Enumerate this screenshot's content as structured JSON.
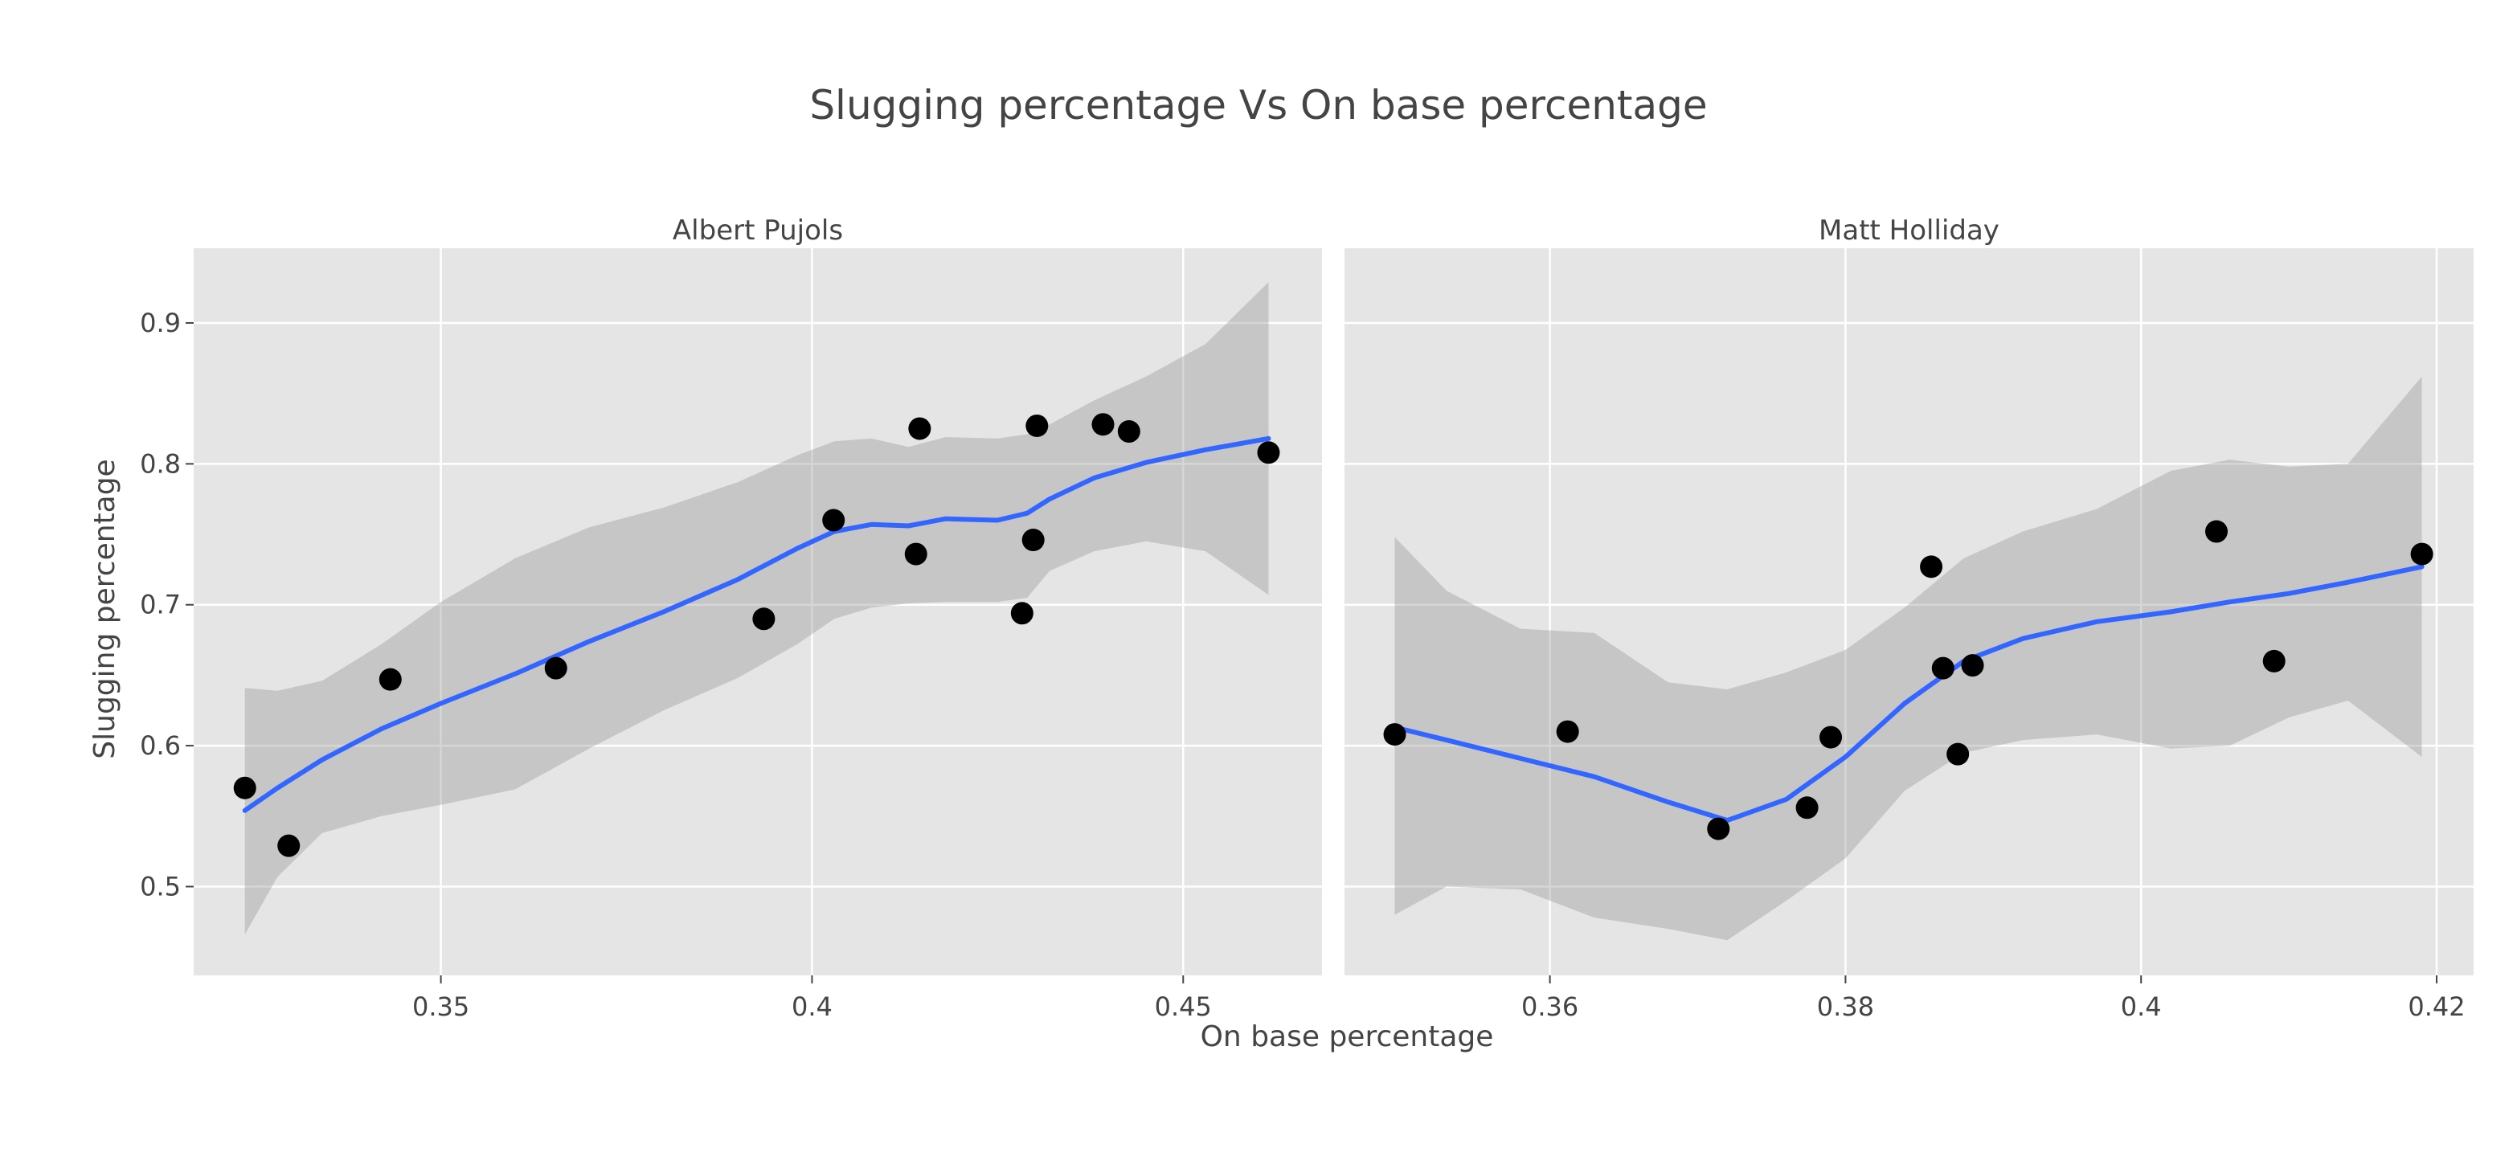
{
  "chart_data": {
    "type": "scatter",
    "title": "Slugging percentage Vs On base percentage",
    "xlabel": "On base percentage",
    "ylabel": "Slugging percentage",
    "ylim": [
      0.437,
      0.953
    ],
    "yticks": [
      0.5,
      0.6,
      0.7,
      0.8,
      0.9
    ],
    "colors": {
      "points": "#000000",
      "smooth": "#3366ff",
      "band": "#999999",
      "panel": "#e5e5e5"
    },
    "facets": [
      {
        "name": "Albert Pujols",
        "xlim": [
          0.3167,
          0.4687
        ],
        "xticks": [
          0.35,
          0.4,
          0.45
        ],
        "x_tick_labels": [
          "0.35",
          "0.4",
          "0.45"
        ],
        "points": [
          {
            "x": 0.3236,
            "y": 0.57
          },
          {
            "x": 0.3295,
            "y": 0.529
          },
          {
            "x": 0.3432,
            "y": 0.647
          },
          {
            "x": 0.3655,
            "y": 0.655
          },
          {
            "x": 0.3935,
            "y": 0.69
          },
          {
            "x": 0.4029,
            "y": 0.76
          },
          {
            "x": 0.414,
            "y": 0.736
          },
          {
            "x": 0.4145,
            "y": 0.825
          },
          {
            "x": 0.4283,
            "y": 0.694
          },
          {
            "x": 0.4298,
            "y": 0.746
          },
          {
            "x": 0.4303,
            "y": 0.827
          },
          {
            "x": 0.4392,
            "y": 0.828
          },
          {
            "x": 0.4427,
            "y": 0.823
          },
          {
            "x": 0.4615,
            "y": 0.808
          }
        ],
        "smooth": [
          {
            "x": 0.3236,
            "y": 0.554,
            "lo": 0.466,
            "hi": 0.641
          },
          {
            "x": 0.328,
            "y": 0.57,
            "lo": 0.507,
            "hi": 0.639
          },
          {
            "x": 0.334,
            "y": 0.59,
            "lo": 0.538,
            "hi": 0.646
          },
          {
            "x": 0.342,
            "y": 0.612,
            "lo": 0.55,
            "hi": 0.672
          },
          {
            "x": 0.35,
            "y": 0.63,
            "lo": 0.558,
            "hi": 0.702
          },
          {
            "x": 0.36,
            "y": 0.651,
            "lo": 0.569,
            "hi": 0.733
          },
          {
            "x": 0.37,
            "y": 0.674,
            "lo": 0.598,
            "hi": 0.755
          },
          {
            "x": 0.38,
            "y": 0.695,
            "lo": 0.625,
            "hi": 0.769
          },
          {
            "x": 0.39,
            "y": 0.718,
            "lo": 0.648,
            "hi": 0.787
          },
          {
            "x": 0.398,
            "y": 0.74,
            "lo": 0.672,
            "hi": 0.806
          },
          {
            "x": 0.403,
            "y": 0.752,
            "lo": 0.69,
            "hi": 0.816
          },
          {
            "x": 0.408,
            "y": 0.757,
            "lo": 0.698,
            "hi": 0.818
          },
          {
            "x": 0.413,
            "y": 0.756,
            "lo": 0.701,
            "hi": 0.812
          },
          {
            "x": 0.418,
            "y": 0.761,
            "lo": 0.702,
            "hi": 0.819
          },
          {
            "x": 0.425,
            "y": 0.76,
            "lo": 0.702,
            "hi": 0.818
          },
          {
            "x": 0.429,
            "y": 0.765,
            "lo": 0.705,
            "hi": 0.821
          },
          {
            "x": 0.432,
            "y": 0.775,
            "lo": 0.724,
            "hi": 0.828
          },
          {
            "x": 0.438,
            "y": 0.79,
            "lo": 0.738,
            "hi": 0.845
          },
          {
            "x": 0.445,
            "y": 0.801,
            "lo": 0.745,
            "hi": 0.862
          },
          {
            "x": 0.453,
            "y": 0.81,
            "lo": 0.738,
            "hi": 0.885
          },
          {
            "x": 0.4615,
            "y": 0.818,
            "lo": 0.707,
            "hi": 0.929
          }
        ]
      },
      {
        "name": "Matt Holliday",
        "xlim": [
          0.3461,
          0.4225
        ],
        "xticks": [
          0.36,
          0.38,
          0.4,
          0.42
        ],
        "x_tick_labels": [
          "0.36",
          "0.38",
          "0.4",
          "0.42"
        ],
        "points": [
          {
            "x": 0.3495,
            "y": 0.608
          },
          {
            "x": 0.3612,
            "y": 0.61
          },
          {
            "x": 0.3714,
            "y": 0.541
          },
          {
            "x": 0.3774,
            "y": 0.556
          },
          {
            "x": 0.379,
            "y": 0.606
          },
          {
            "x": 0.3858,
            "y": 0.727
          },
          {
            "x": 0.3866,
            "y": 0.655
          },
          {
            "x": 0.3876,
            "y": 0.594
          },
          {
            "x": 0.3886,
            "y": 0.657
          },
          {
            "x": 0.4051,
            "y": 0.752
          },
          {
            "x": 0.409,
            "y": 0.66
          },
          {
            "x": 0.419,
            "y": 0.736
          }
        ],
        "smooth": [
          {
            "x": 0.3495,
            "y": 0.613,
            "lo": 0.48,
            "hi": 0.748
          },
          {
            "x": 0.353,
            "y": 0.604,
            "lo": 0.5,
            "hi": 0.71
          },
          {
            "x": 0.358,
            "y": 0.591,
            "lo": 0.498,
            "hi": 0.683
          },
          {
            "x": 0.363,
            "y": 0.578,
            "lo": 0.478,
            "hi": 0.68
          },
          {
            "x": 0.368,
            "y": 0.56,
            "lo": 0.47,
            "hi": 0.645
          },
          {
            "x": 0.372,
            "y": 0.547,
            "lo": 0.462,
            "hi": 0.64
          },
          {
            "x": 0.376,
            "y": 0.562,
            "lo": 0.49,
            "hi": 0.652
          },
          {
            "x": 0.38,
            "y": 0.592,
            "lo": 0.52,
            "hi": 0.668
          },
          {
            "x": 0.384,
            "y": 0.63,
            "lo": 0.568,
            "hi": 0.698
          },
          {
            "x": 0.388,
            "y": 0.66,
            "lo": 0.595,
            "hi": 0.733
          },
          {
            "x": 0.392,
            "y": 0.676,
            "lo": 0.604,
            "hi": 0.752
          },
          {
            "x": 0.397,
            "y": 0.688,
            "lo": 0.608,
            "hi": 0.768
          },
          {
            "x": 0.402,
            "y": 0.695,
            "lo": 0.598,
            "hi": 0.795
          },
          {
            "x": 0.406,
            "y": 0.702,
            "lo": 0.6,
            "hi": 0.803
          },
          {
            "x": 0.41,
            "y": 0.708,
            "lo": 0.62,
            "hi": 0.798
          },
          {
            "x": 0.414,
            "y": 0.716,
            "lo": 0.632,
            "hi": 0.8
          },
          {
            "x": 0.419,
            "y": 0.727,
            "lo": 0.592,
            "hi": 0.862
          }
        ]
      }
    ]
  }
}
